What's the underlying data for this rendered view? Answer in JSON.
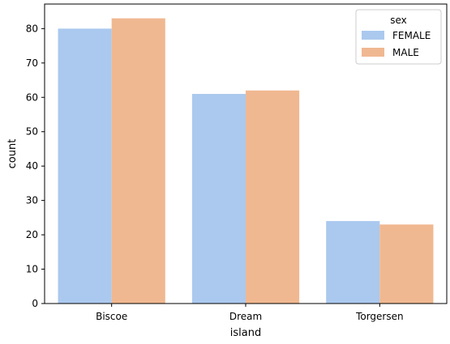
{
  "chart_data": {
    "type": "bar",
    "xlabel": "island",
    "ylabel": "count",
    "categories": [
      "Biscoe",
      "Dream",
      "Torgersen"
    ],
    "series": [
      {
        "name": "FEMALE",
        "values": [
          80,
          61,
          24
        ],
        "color": "#abc9ee"
      },
      {
        "name": "MALE",
        "values": [
          83,
          62,
          23
        ],
        "color": "#f0b891"
      }
    ],
    "ylim": [
      0,
      87.15
    ],
    "yticks": [
      0,
      10,
      20,
      30,
      40,
      50,
      60,
      70,
      80
    ],
    "legend": {
      "title": "sex",
      "position": "top-right"
    },
    "grid": false
  }
}
